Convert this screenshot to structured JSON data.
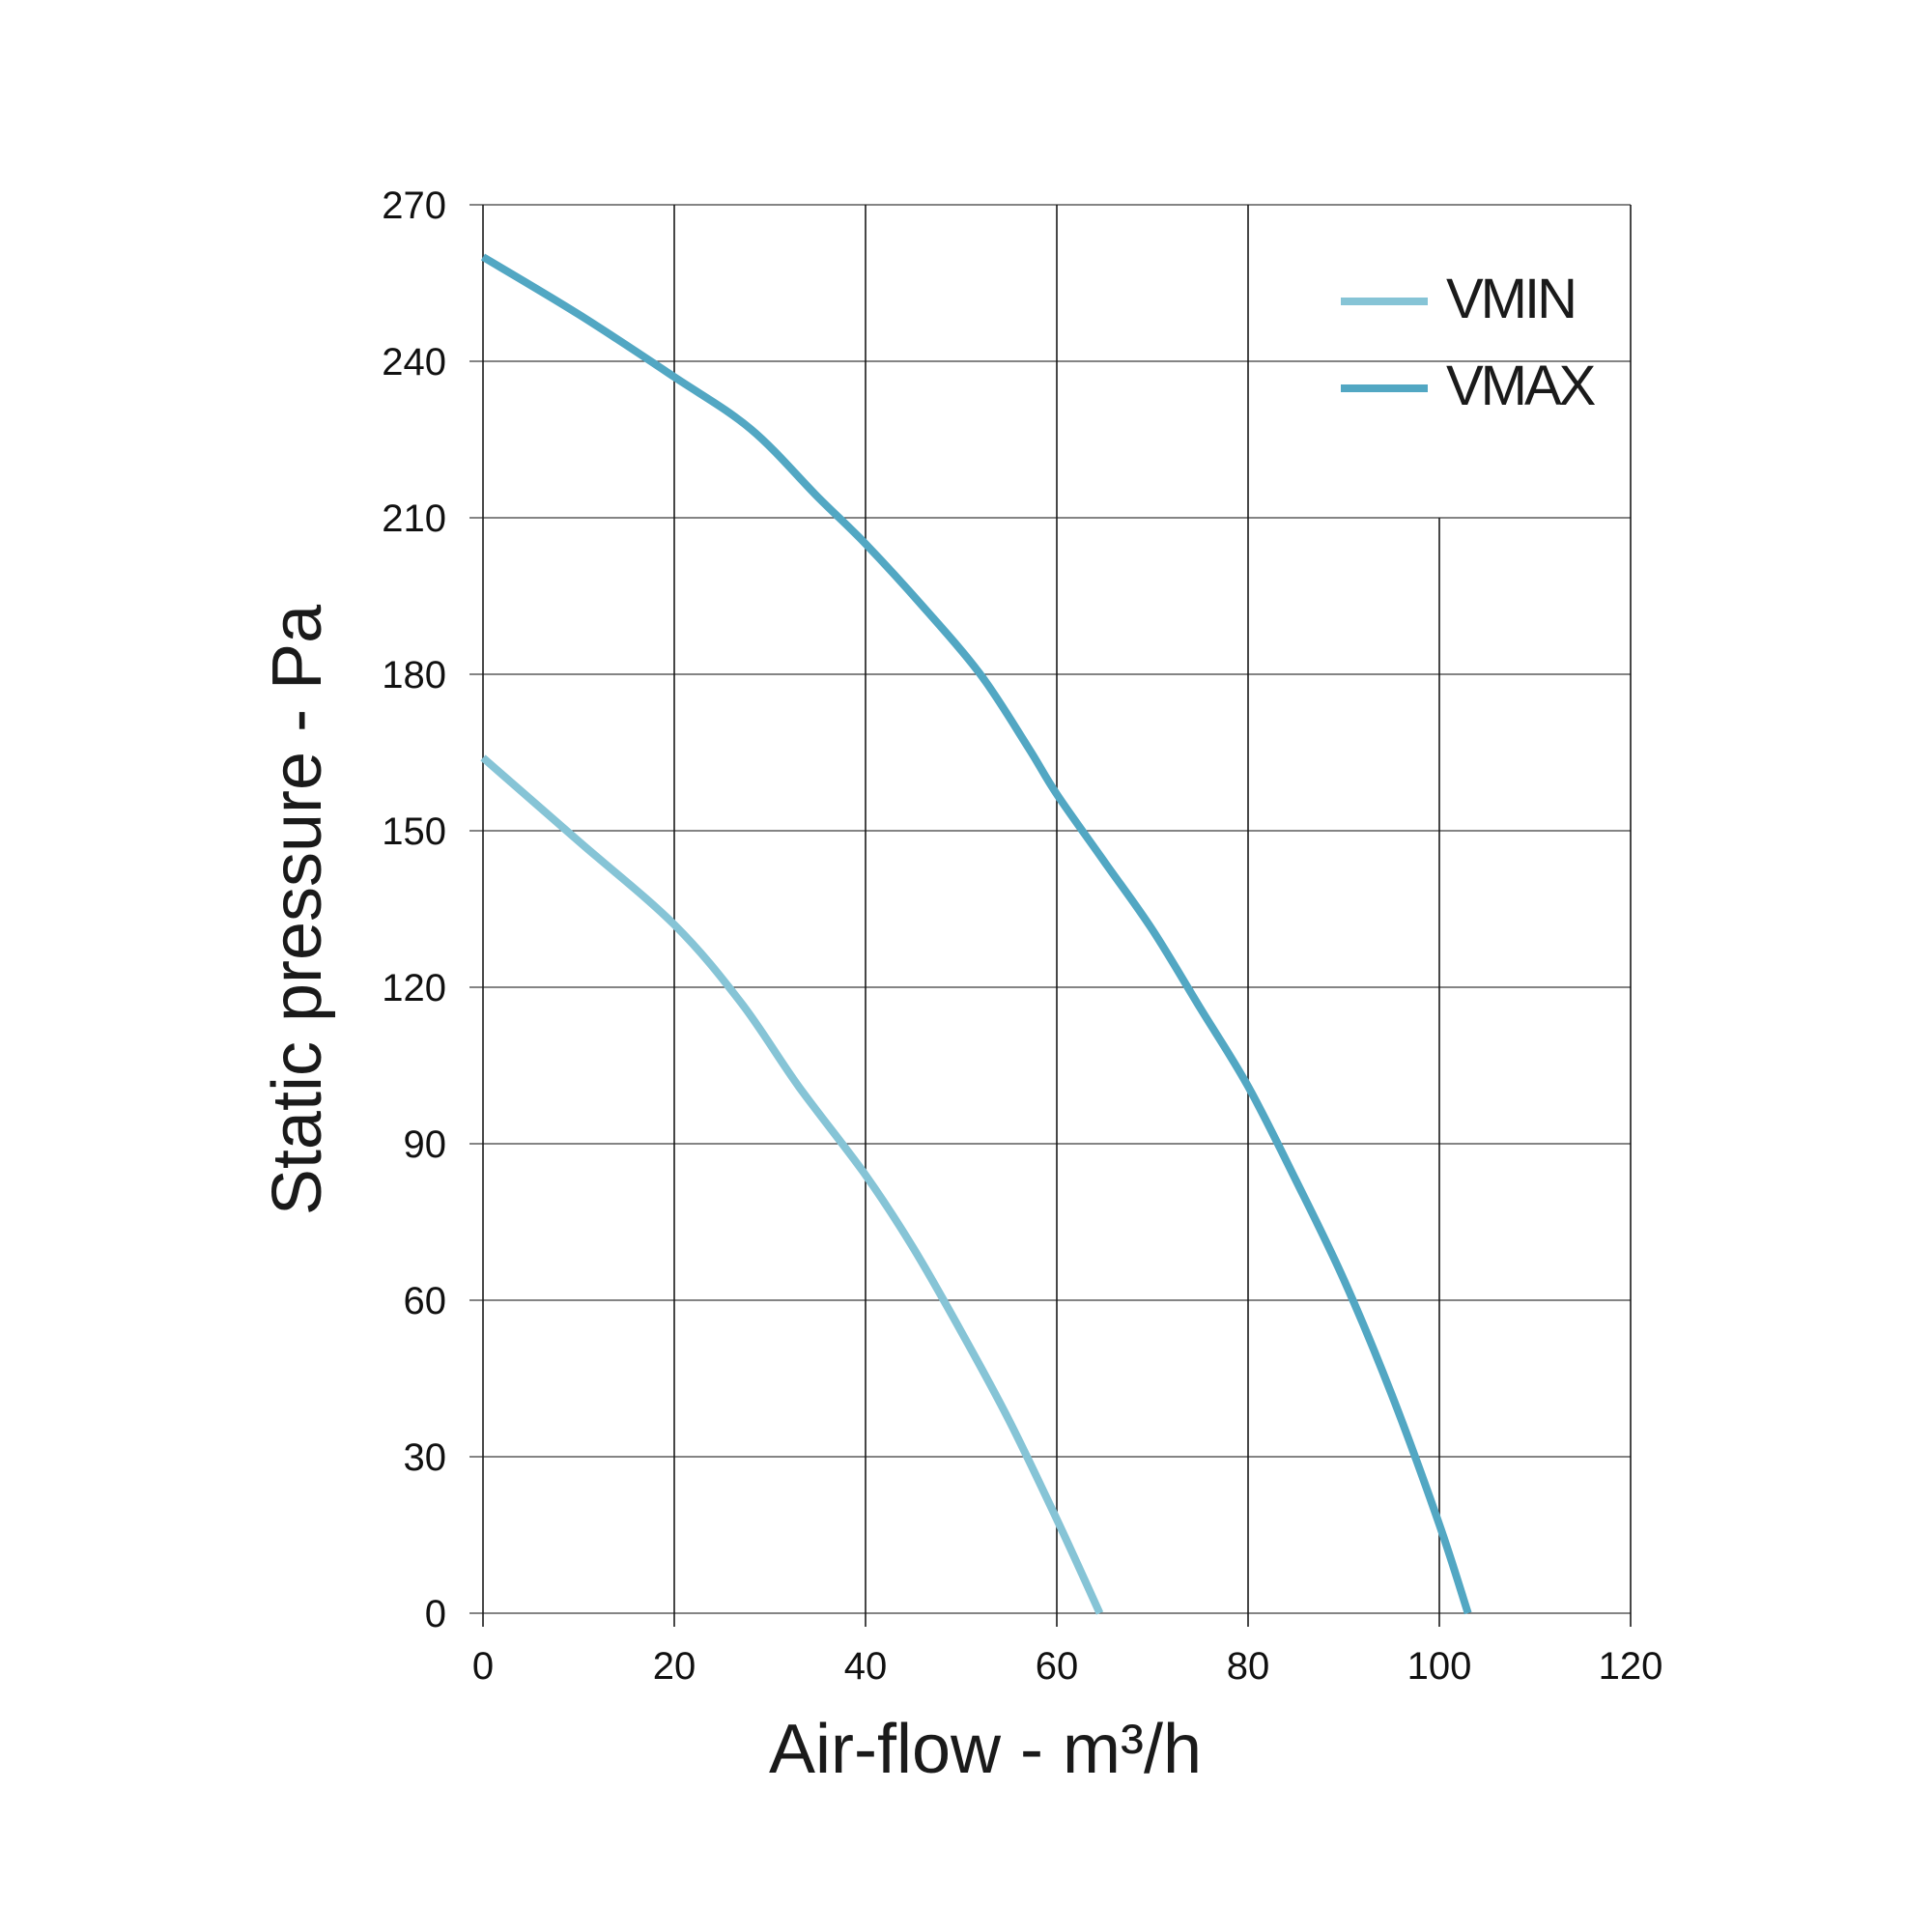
{
  "chart_data": {
    "type": "line",
    "xlabel": "Air-flow - m³/h",
    "ylabel": "Static pressure - Pa",
    "xlim": [
      0,
      120
    ],
    "ylim": [
      0,
      270
    ],
    "xticks": [
      "0",
      "20",
      "40",
      "60",
      "80",
      "100",
      "120"
    ],
    "yticks": [
      "0",
      "30",
      "60",
      "90",
      "120",
      "150",
      "180",
      "210",
      "240",
      "270"
    ],
    "grid": true,
    "legend": "top-right",
    "series": [
      {
        "name": "VMIN",
        "color": "#86c4d6",
        "x": [
          0,
          10,
          20,
          27,
          33,
          40,
          45,
          50,
          55,
          60,
          64.5
        ],
        "y": [
          164,
          148,
          132,
          117,
          101,
          84,
          70,
          54,
          37,
          18,
          0
        ]
      },
      {
        "name": "VMAX",
        "color": "#52a7c3",
        "x": [
          0,
          10,
          20,
          28,
          35,
          40,
          46,
          52,
          57,
          60,
          65,
          70,
          75,
          80,
          85,
          90,
          95,
          100,
          103
        ],
        "y": [
          260,
          249,
          237,
          227,
          214,
          205,
          193,
          180,
          166,
          157,
          144,
          131,
          116,
          101,
          83,
          64,
          42,
          17,
          0
        ]
      }
    ]
  }
}
